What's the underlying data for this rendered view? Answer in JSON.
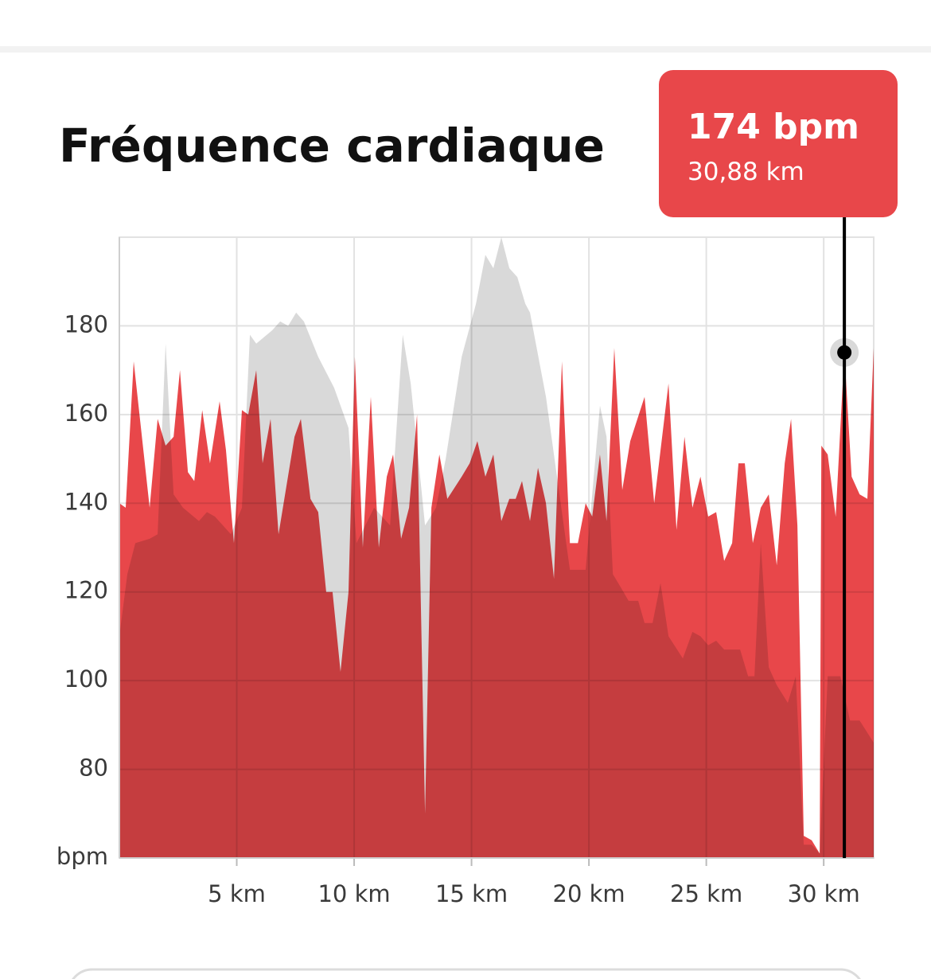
{
  "chart_data": {
    "type": "area",
    "title": "Fréquence cardiaque",
    "xlim": [
      0,
      32.13
    ],
    "ylim": [
      60,
      200
    ],
    "xticks": [
      {
        "value": 5,
        "label": "5 km"
      },
      {
        "value": 10,
        "label": "10 km"
      },
      {
        "value": 15,
        "label": "15 km"
      },
      {
        "value": 20,
        "label": "20 km"
      },
      {
        "value": 25,
        "label": "25 km"
      },
      {
        "value": 30,
        "label": "30 km"
      }
    ],
    "yticks": [
      {
        "value": 60,
        "label": "bpm"
      },
      80,
      100,
      120,
      140,
      160,
      180
    ],
    "grid": true,
    "series": [
      {
        "color": "#d9d9d9",
        "x": [
          0,
          0.34,
          0.68,
          1.29,
          1.63,
          1.97,
          2.31,
          2.71,
          3.39,
          3.73,
          4.07,
          4.75,
          5.22,
          5.56,
          5.83,
          6.51,
          6.85,
          7.19,
          7.53,
          7.86,
          8.47,
          9.15,
          9.76,
          10.1,
          10.85,
          11.53,
          12.07,
          12.41,
          13.02,
          13.49,
          13.9,
          14.58,
          15.19,
          15.59,
          15.93,
          16.27,
          16.61,
          16.95,
          17.29,
          17.49,
          18.17,
          18.64,
          19.19,
          19.86,
          20.47,
          20.75,
          21.02,
          21.36,
          21.69,
          22.1,
          22.37,
          22.71,
          23.05,
          23.39,
          24,
          24.41,
          24.75,
          25.08,
          25.42,
          25.76,
          26.44,
          26.78,
          27.05,
          27.32,
          27.66,
          28,
          28.47,
          28.81,
          29.15,
          29.49,
          29.83,
          30.17,
          30.71,
          31.12,
          31.53,
          32.13
        ],
        "values": [
          110,
          124,
          131,
          132,
          133,
          176,
          142,
          139,
          136,
          138,
          137,
          133,
          139,
          178,
          176,
          179,
          181,
          180,
          183,
          181,
          173,
          166,
          157,
          131,
          139,
          135,
          178,
          167,
          135,
          139,
          150,
          173,
          185,
          196,
          193,
          200,
          193,
          191,
          185,
          183,
          164,
          146,
          125,
          125,
          162,
          155,
          124,
          121,
          118,
          118,
          113,
          113,
          122,
          110,
          105,
          111,
          110,
          108,
          109,
          107,
          107,
          101,
          101,
          131,
          103,
          99,
          95,
          101,
          63,
          63,
          61,
          101,
          101,
          91,
          91,
          86
        ]
      },
      {
        "color": "#e8474a",
        "x": [
          0,
          0.27,
          0.61,
          1.29,
          1.63,
          1.97,
          2.31,
          2.58,
          2.92,
          3.19,
          3.53,
          3.86,
          4.27,
          4.54,
          4.88,
          5.22,
          5.49,
          5.83,
          6.1,
          6.44,
          6.78,
          7.46,
          7.73,
          8.14,
          8.47,
          8.81,
          9.08,
          9.42,
          9.76,
          10.03,
          10.37,
          10.71,
          11.05,
          11.39,
          11.66,
          12,
          12.34,
          12.68,
          13.02,
          13.29,
          13.63,
          13.97,
          14.58,
          14.92,
          15.25,
          15.59,
          15.93,
          16.27,
          16.61,
          16.88,
          17.15,
          17.49,
          17.83,
          18.17,
          18.51,
          18.85,
          19.19,
          19.53,
          19.86,
          20.14,
          20.47,
          20.75,
          21.08,
          21.42,
          21.76,
          22.37,
          22.78,
          23.39,
          23.73,
          24.07,
          24.41,
          24.75,
          25.08,
          25.42,
          25.76,
          26.1,
          26.37,
          26.64,
          26.98,
          27.32,
          27.66,
          28,
          28.34,
          28.61,
          28.88,
          29.15,
          29.49,
          29.83,
          29.9,
          30.17,
          30.51,
          30.88,
          31.19,
          31.53,
          31.86,
          32.13
        ],
        "values": [
          140,
          139,
          172,
          139,
          159,
          153,
          155,
          170,
          147,
          145,
          161,
          149,
          163,
          152,
          131,
          161,
          160,
          170,
          149,
          159,
          133,
          155,
          159,
          141,
          138,
          120,
          120,
          102,
          120,
          173,
          130,
          164,
          130,
          146,
          151,
          132,
          139,
          160,
          70,
          139,
          151,
          141,
          146,
          149,
          154,
          146,
          151,
          136,
          141,
          141,
          145,
          136,
          148,
          140,
          123,
          172,
          131,
          131,
          140,
          137,
          151,
          136,
          175,
          143,
          154,
          164,
          140,
          167,
          134,
          155,
          139,
          146,
          137,
          138,
          127,
          131,
          149,
          149,
          131,
          139,
          142,
          126,
          149,
          159,
          135,
          65,
          64,
          61,
          153,
          151,
          137,
          174,
          146,
          142,
          141,
          175
        ]
      }
    ],
    "tooltip": {
      "x": 30.88,
      "y": 174,
      "value_label": "174 bpm",
      "x_label": "30,88 km"
    }
  }
}
